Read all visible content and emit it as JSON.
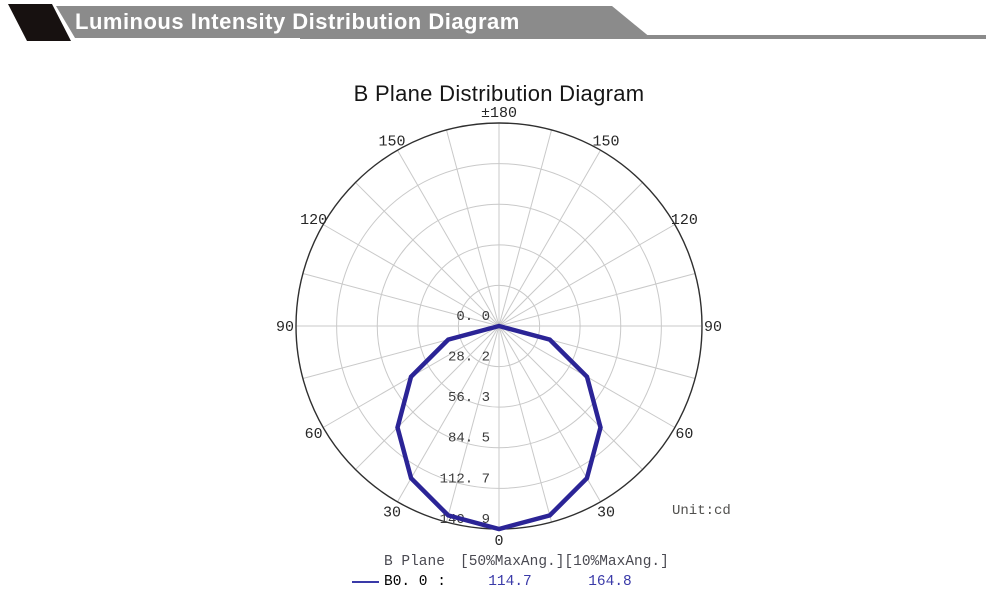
{
  "header": {
    "title": "Luminous Intensity Distribution Diagram"
  },
  "colors": {
    "banner_gray": "#8b8b8b",
    "banner_black": "#171110",
    "banner_text": "#ffffff",
    "legend_text": "#4a4a52",
    "legend_value_blue": "#3a3aa8",
    "curve_navy": "#2b2496"
  },
  "chart_data": {
    "type": "line",
    "polar": true,
    "title": "B Plane Distribution Diagram",
    "unit_label": "Unit:cd",
    "grid": true,
    "spoke_step_deg": 15,
    "angle_axis": {
      "zero_position": "bottom",
      "labels": [
        {
          "deg": 180,
          "text": "±180"
        },
        {
          "deg": 150,
          "text": "150"
        },
        {
          "deg": 120,
          "text": "120"
        },
        {
          "deg": 90,
          "text": "90"
        },
        {
          "deg": 60,
          "text": "60"
        },
        {
          "deg": 30,
          "text": "30"
        },
        {
          "deg": 0,
          "text": "0"
        }
      ]
    },
    "r_max": 140.9,
    "rings": [
      {
        "value": 0.0,
        "label": "0. 0"
      },
      {
        "value": 28.2,
        "label": "28. 2"
      },
      {
        "value": 56.3,
        "label": "56. 3"
      },
      {
        "value": 84.5,
        "label": "84. 5"
      },
      {
        "value": 112.7,
        "label": "112. 7"
      },
      {
        "value": 140.9,
        "label": "140. 9"
      }
    ],
    "series": [
      {
        "name": "B0. 0",
        "color": "#2b2496",
        "angles_deg": [
          -90,
          -75,
          -60,
          -45,
          -30,
          -15,
          0,
          15,
          30,
          45,
          60,
          75,
          90
        ],
        "values_cd": [
          0.0,
          36.5,
          70.5,
          99.6,
          122.0,
          136.1,
          140.9,
          136.1,
          122.0,
          99.6,
          70.5,
          36.5,
          0.0
        ]
      }
    ],
    "legend": {
      "plane_label": "B Plane",
      "col_headers": [
        "[50%MaxAng.]",
        "[10%MaxAng.]"
      ],
      "rows": [
        {
          "name": "B0. 0",
          "sep": ":",
          "values": [
            "114.7",
            "164.8"
          ]
        }
      ]
    },
    "style": {
      "grid_color": "#c9c9c9",
      "axis_color": "#2f2f2f",
      "label_color": "#262626",
      "tick_color": "#3c3c3c",
      "unit_color": "#51504e"
    }
  }
}
